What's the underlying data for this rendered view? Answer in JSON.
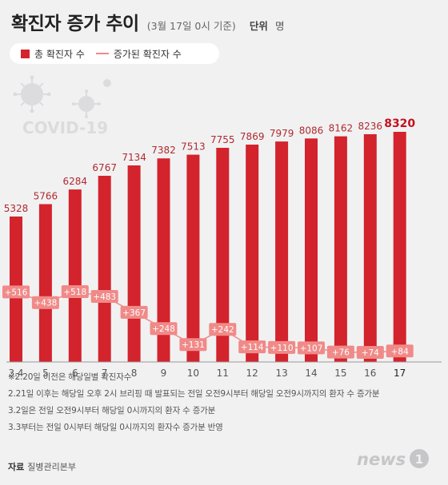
{
  "header": {
    "title": "확진자 증가 추이",
    "subtitle": "(3월 17일 0시 기준)",
    "unit_label": "단위",
    "unit_value": "명"
  },
  "legend": {
    "total_label": "총 확진자 수",
    "increase_label": "증가된 확진자 수"
  },
  "watermark": "COVID-19",
  "chart_data": {
    "type": "bar",
    "categories": [
      "3.4",
      "5",
      "6",
      "7",
      "8",
      "9",
      "10",
      "11",
      "12",
      "13",
      "14",
      "15",
      "16",
      "17"
    ],
    "series": [
      {
        "name": "총 확진자 수",
        "type": "bar",
        "values": [
          5328,
          5766,
          6284,
          6767,
          7134,
          7382,
          7513,
          7755,
          7869,
          7979,
          8086,
          8162,
          8236,
          8320
        ]
      },
      {
        "name": "증가된 확진자 수",
        "type": "line",
        "values": [
          516,
          438,
          518,
          483,
          367,
          248,
          131,
          242,
          114,
          110,
          107,
          76,
          74,
          84
        ]
      }
    ],
    "colors": {
      "bar": "#d3232c",
      "bar_last": "#d3232c",
      "line": "#f08a88",
      "label_box": "#f08a88"
    }
  },
  "footnotes": [
    "※2.20일 이전은 해당일별 확진자수",
    "2.21일 이후는 해당일 오후 2시 브리핑 때 발표되는 전일 오전9시부터 해당일 오전9시까지의 환자 수 증가분",
    "3.2일은 전일 오전9시부터 해당일 0시까지의 환자 수 증가분",
    "3.3부터는 전일 0시부터 해당일 0시까지의 환자수 증가분 반영"
  ],
  "source": {
    "label": "자료",
    "value": "질병관리본부"
  },
  "logo": {
    "text": "news",
    "mark": "1"
  }
}
